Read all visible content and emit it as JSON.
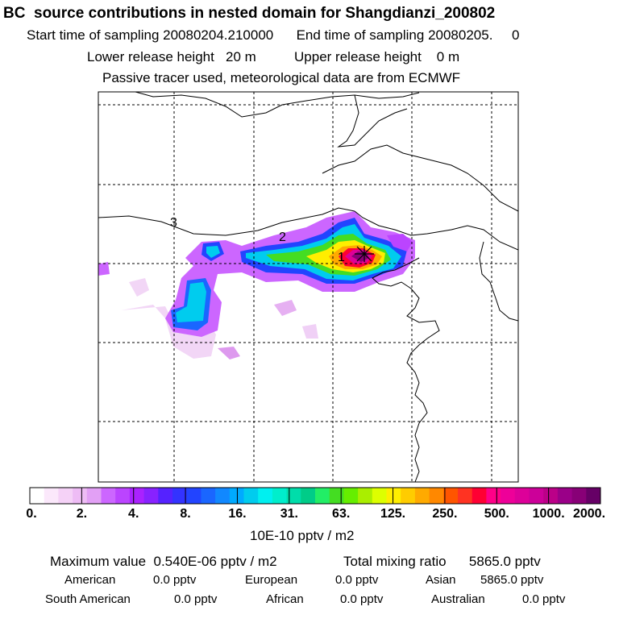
{
  "header": {
    "title": "BC  source contributions in nested domain for Shangdianzi_200802",
    "start_label": "Start time of sampling",
    "start_value": "20080204.210000",
    "end_label": "End time of sampling",
    "end_value": "20080205.     0",
    "lower_label": "Lower release height",
    "lower_value": "20 m",
    "upper_label": "Upper release height",
    "upper_value": "0 m",
    "note": "Passive tracer used, meteorological data are from ECMWF"
  },
  "chart_data": {
    "type": "heatmap",
    "description_units": "10E-10 pptv / m2",
    "colorbar": {
      "tick_labels": [
        "0.",
        "2.",
        "4.",
        "8.",
        "16.",
        "31.",
        "63.",
        "125.",
        "250.",
        "500.",
        "1000.",
        "2000."
      ],
      "colors": [
        "#ffffff",
        "#fbe8fb",
        "#f5d2f7",
        "#eebcf5",
        "#e2a0f5",
        "#cc66ff",
        "#bb44ff",
        "#aa22ff",
        "#8822ff",
        "#5522ff",
        "#3333ff",
        "#2244ff",
        "#1a66ff",
        "#1188ff",
        "#00aaff",
        "#00ccee",
        "#00f0f0",
        "#00eecc",
        "#00ddaa",
        "#00cc88",
        "#22ee66",
        "#44dd22",
        "#66ee00",
        "#aaee00",
        "#ddff00",
        "#ffee00",
        "#ffcc00",
        "#ffaa00",
        "#ff8800",
        "#ff5500",
        "#ff3322",
        "#ff0033",
        "#ff0088",
        "#ee0099",
        "#dd0099",
        "#cc0099",
        "#bb0088",
        "#9a0088",
        "#880077",
        "#660066"
      ]
    },
    "site_labels": [
      "1",
      "2",
      "3"
    ],
    "field_cells": [
      {
        "col": 0,
        "row": 2,
        "bin": 7
      },
      {
        "col": 1,
        "row": 2,
        "bin": 4
      }
    ]
  },
  "stats": {
    "max_label": "Maximum value",
    "max_value": "0.540E-06 pptv / m2",
    "total_label": "Total mixing ratio",
    "total_value": "5865.0 pptv",
    "regions": [
      {
        "name": "American",
        "value": "0.0 pptv"
      },
      {
        "name": "European",
        "value": "0.0 pptv"
      },
      {
        "name": "Asian",
        "value": "5865.0 pptv"
      },
      {
        "name": "South American",
        "value": "0.0 pptv"
      },
      {
        "name": "African",
        "value": "0.0 pptv"
      },
      {
        "name": "Australian",
        "value": "0.0 pptv"
      }
    ]
  }
}
